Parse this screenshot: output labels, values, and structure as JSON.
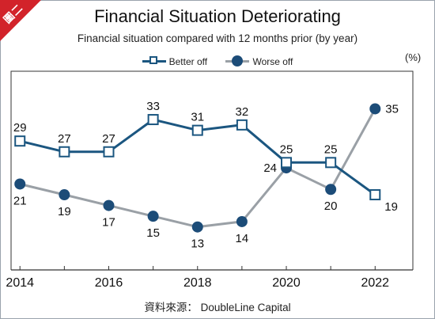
{
  "badge": "圖二",
  "unit": "(%)",
  "source": "資料來源： DoubleLine Capital",
  "colors": {
    "better": "#1b5680",
    "worse_line": "#9aa0a6",
    "worse_marker": "#1c4c78",
    "badge": "#d2232a"
  },
  "chart_data": {
    "type": "line",
    "title": "Financial Situation Deteriorating",
    "subtitle": "Financial situation compared with 12 months prior (by year)",
    "x": [
      2014,
      2015,
      2016,
      2017,
      2018,
      2019,
      2020,
      2021,
      2022
    ],
    "x_tick_labels": [
      "2014",
      "2016",
      "2018",
      "2020",
      "2022"
    ],
    "x_tick_values": [
      2014,
      2016,
      2018,
      2020,
      2022
    ],
    "xlim": [
      2013.8,
      2022.85
    ],
    "ylim": [
      5,
      42
    ],
    "grid": false,
    "legend": "top-center",
    "series": [
      {
        "name": "Better off",
        "marker": "square",
        "values": [
          29,
          27,
          27,
          33,
          31,
          32,
          25,
          25,
          19
        ]
      },
      {
        "name": "Worse off",
        "marker": "circle",
        "values": [
          21,
          19,
          17,
          15,
          13,
          14,
          24,
          20,
          35
        ]
      }
    ]
  }
}
